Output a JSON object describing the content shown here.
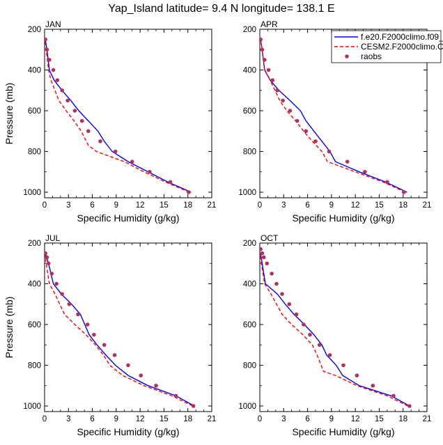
{
  "title": "Yap_Island  latitude= 9.4 N longitude= 138.1 E",
  "legend": {
    "entries": [
      {
        "label": "f.e20.F2000climo.f09_",
        "color": "#0000ff",
        "style": "solid"
      },
      {
        "label": "CESM2.F2000climo.C",
        "color": "#ff0000",
        "style": "dashed"
      },
      {
        "label": "raobs",
        "color": "#b03060",
        "style": "marker"
      }
    ]
  },
  "chart_data": [
    {
      "type": "line",
      "panel_label": "JAN",
      "xlabel": "Specific Humidity (g/kg)",
      "ylabel": "Pressure (mb)",
      "xlim": [
        0,
        21
      ],
      "ylim": [
        1000,
        200
      ],
      "y_reversed": true,
      "xticks": [
        "0",
        "3",
        "6",
        "9",
        "12",
        "15",
        "18",
        "21"
      ],
      "yticks": [
        "200",
        "400",
        "600",
        "800",
        "1000"
      ],
      "series": [
        {
          "name": "f.e20.F2000climo.f09_",
          "x": [
            18.4,
            15.5,
            13,
            10.5,
            8.5,
            7.5,
            6.7,
            5.5,
            4.3,
            3.3,
            2.2,
            1.2,
            0.6,
            0.3,
            0.1
          ],
          "y": [
            1000,
            950,
            900,
            850,
            800,
            750,
            700,
            650,
            600,
            550,
            500,
            450,
            400,
            300,
            250
          ]
        },
        {
          "name": "CESM2.F2000climo.C",
          "x": [
            18.2,
            15.2,
            12.5,
            10,
            6.5,
            5.5,
            4.6,
            3.7,
            2.7,
            1.8,
            0.8,
            0.5,
            0.2,
            0.05
          ],
          "y": [
            1000,
            950,
            900,
            850,
            800,
            770,
            700,
            650,
            600,
            550,
            450,
            400,
            300,
            250
          ]
        },
        {
          "name": "raobs",
          "x": [
            18.1,
            15.8,
            13.2,
            11,
            8.9,
            7,
            5.5,
            4.7,
            3.8,
            2.9,
            2.2,
            1.6,
            1.1,
            0.6,
            0.3,
            0.1
          ],
          "y": [
            1000,
            950,
            900,
            850,
            800,
            750,
            700,
            650,
            600,
            550,
            500,
            450,
            400,
            350,
            300,
            250
          ]
        }
      ]
    },
    {
      "type": "line",
      "panel_label": "APR",
      "xlabel": "Specific Humidity (g/kg)",
      "ylabel": "",
      "xlim": [
        0,
        21
      ],
      "ylim": [
        1000,
        200
      ],
      "y_reversed": true,
      "xticks": [
        "0",
        "3",
        "6",
        "9",
        "12",
        "15",
        "18",
        "21"
      ],
      "yticks": [
        "200",
        "400",
        "600",
        "800",
        "1000"
      ],
      "series": [
        {
          "name": "f.e20.F2000climo.f09_",
          "x": [
            18.5,
            15.8,
            12.5,
            9.5,
            8.8,
            7.8,
            6.8,
            5.8,
            5.1,
            3.8,
            2.4,
            1.3,
            0.6,
            0.3,
            0.1
          ],
          "y": [
            1000,
            950,
            900,
            850,
            800,
            750,
            700,
            650,
            600,
            550,
            500,
            450,
            400,
            300,
            250
          ]
        },
        {
          "name": "CESM2.F2000climo.C",
          "x": [
            18.3,
            15.5,
            12,
            8.5,
            7.8,
            6.6,
            5.5,
            4.5,
            3.4,
            2.5,
            1.3,
            0.6,
            0.3,
            0.1
          ],
          "y": [
            1000,
            950,
            900,
            850,
            800,
            750,
            700,
            650,
            600,
            550,
            450,
            400,
            300,
            250
          ]
        },
        {
          "name": "raobs",
          "x": [
            18.1,
            16,
            13.2,
            11,
            8.7,
            7,
            5.8,
            4.7,
            3.8,
            2.9,
            2.2,
            1.6,
            1.1,
            0.6,
            0.3,
            0.1
          ],
          "y": [
            1000,
            950,
            900,
            850,
            800,
            750,
            700,
            650,
            600,
            550,
            500,
            450,
            400,
            350,
            300,
            250
          ]
        }
      ]
    },
    {
      "type": "line",
      "panel_label": "JUL",
      "xlabel": "Specific Humidity (g/kg)",
      "ylabel": "Pressure (mb)",
      "xlim": [
        0,
        21
      ],
      "ylim": [
        1000,
        200
      ],
      "y_reversed": true,
      "xticks": [
        "0",
        "3",
        "6",
        "9",
        "12",
        "15",
        "18",
        "21"
      ],
      "yticks": [
        "200",
        "400",
        "600",
        "800",
        "1000"
      ],
      "series": [
        {
          "name": "f.e20.F2000climo.f09_",
          "x": [
            18.8,
            16.5,
            13,
            10.5,
            8.9,
            7.7,
            6.6,
            5.6,
            4.5,
            3.4,
            2.1,
            1.1,
            0.5,
            0.1
          ],
          "y": [
            1000,
            950,
            900,
            850,
            800,
            750,
            700,
            650,
            550,
            500,
            450,
            400,
            300,
            250
          ]
        },
        {
          "name": "CESM2.F2000climo.C",
          "x": [
            18.6,
            16,
            12.5,
            9.8,
            8.2,
            7.4,
            6.4,
            5.2,
            3.8,
            2.5,
            1.3,
            0.6,
            0.2,
            0.05
          ],
          "y": [
            1000,
            950,
            900,
            850,
            800,
            750,
            700,
            650,
            600,
            550,
            450,
            400,
            300,
            250
          ]
        },
        {
          "name": "raobs",
          "x": [
            18.7,
            16.5,
            14,
            12.1,
            10.5,
            8.8,
            7.5,
            6.2,
            5.4,
            4.2,
            3.1,
            2.2,
            1.5,
            0.9,
            0.5,
            0.3,
            0.1
          ],
          "y": [
            1000,
            950,
            900,
            850,
            800,
            750,
            700,
            650,
            600,
            550,
            500,
            450,
            400,
            350,
            300,
            270,
            250
          ]
        }
      ]
    },
    {
      "type": "line",
      "panel_label": "OCT",
      "xlabel": "Specific Humidity (g/kg)",
      "ylabel": "",
      "xlim": [
        0,
        21
      ],
      "ylim": [
        1000,
        200
      ],
      "y_reversed": true,
      "xticks": [
        "0",
        "3",
        "6",
        "9",
        "12",
        "15",
        "18",
        "21"
      ],
      "yticks": [
        "200",
        "400",
        "600",
        "800",
        "1000"
      ],
      "series": [
        {
          "name": "f.e20.F2000climo.f09_",
          "x": [
            18.8,
            16.5,
            12.5,
            10.4,
            9.6,
            8.4,
            7.8,
            6.8,
            5.6,
            4.3,
            3.2,
            2.2,
            0.7,
            0.3,
            0.1
          ],
          "y": [
            1000,
            950,
            900,
            850,
            800,
            750,
            700,
            650,
            600,
            550,
            500,
            450,
            400,
            300,
            250
          ]
        },
        {
          "name": "CESM2.F2000climo.C",
          "x": [
            18.6,
            16,
            12.2,
            9.5,
            8,
            7.2,
            6.6,
            5.4,
            4,
            2.8,
            1.4,
            0.6,
            0.2,
            0.05
          ],
          "y": [
            1000,
            950,
            900,
            850,
            830,
            750,
            700,
            650,
            600,
            550,
            450,
            400,
            300,
            250
          ]
        },
        {
          "name": "raobs",
          "x": [
            18.8,
            16.8,
            14.2,
            12.2,
            10.5,
            8.8,
            7.5,
            6.3,
            5.5,
            4.6,
            3.7,
            2.8,
            2.1,
            1.5,
            0.9,
            0.5,
            0.3,
            0.1
          ],
          "y": [
            1000,
            950,
            900,
            850,
            800,
            750,
            700,
            650,
            600,
            550,
            500,
            450,
            400,
            350,
            300,
            270,
            250,
            230
          ]
        }
      ]
    }
  ]
}
